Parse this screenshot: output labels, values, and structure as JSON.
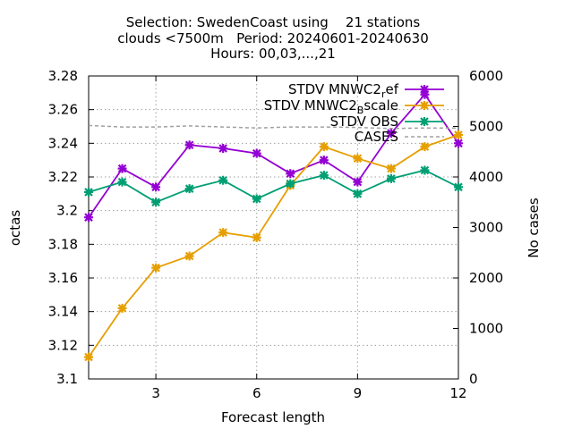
{
  "chart_data": {
    "type": "line",
    "title": [
      "Selection: SwedenCoast using    21 stations",
      "clouds <7500m   Period: 20240601-20240630",
      "Hours: 00,03,...,21"
    ],
    "xlabel": "Forecast length",
    "ylabel": "octas",
    "y2label": "No cases",
    "xlim": [
      1,
      12
    ],
    "ylim": [
      3.1,
      3.28
    ],
    "y2lim": [
      0,
      6000
    ],
    "xticks": [
      3,
      6,
      9,
      12
    ],
    "yticks": [
      3.1,
      3.12,
      3.14,
      3.16,
      3.18,
      3.2,
      3.22,
      3.24,
      3.26,
      3.28
    ],
    "yticklabels": [
      "3.1",
      "3.12",
      "3.14",
      "3.16",
      "3.18",
      "3.2",
      "3.22",
      "3.24",
      "3.26",
      "3.28"
    ],
    "y2ticks": [
      0,
      1000,
      2000,
      3000,
      4000,
      5000,
      6000
    ],
    "grid": true,
    "legend_position": "top-right",
    "x": [
      1,
      2,
      3,
      4,
      5,
      6,
      7,
      8,
      9,
      10,
      11,
      12
    ],
    "series": [
      {
        "name": "STDV MNWC2_ref",
        "color": "#9400d3",
        "axis": "y1",
        "style": "line-points",
        "values": [
          3.196,
          3.225,
          3.214,
          3.239,
          3.237,
          3.234,
          3.222,
          3.23,
          3.217,
          3.246,
          3.269,
          3.24
        ]
      },
      {
        "name": "STDV MNWC2_Bscale",
        "color": "#e69f00",
        "axis": "y1",
        "style": "line-points",
        "values": [
          3.113,
          3.142,
          3.166,
          3.173,
          3.187,
          3.184,
          3.215,
          3.238,
          3.231,
          3.225,
          3.238,
          3.245
        ]
      },
      {
        "name": "STDV OBS",
        "color": "#009e73",
        "axis": "y1",
        "style": "line-points",
        "values": [
          3.211,
          3.217,
          3.205,
          3.213,
          3.218,
          3.207,
          3.216,
          3.221,
          3.21,
          3.219,
          3.224,
          3.214
        ]
      },
      {
        "name": "CASES",
        "color": "#a0a0a0",
        "axis": "y2",
        "style": "dashed",
        "values": [
          5020,
          4990,
          4990,
          5010,
          4990,
          4970,
          4990,
          4990,
          4980,
          4960,
          4970,
          4970
        ]
      }
    ]
  }
}
